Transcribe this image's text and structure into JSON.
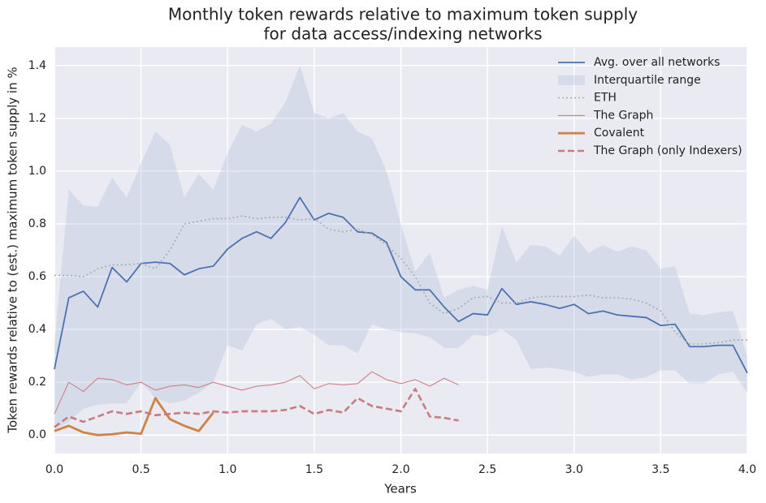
{
  "chart_data": {
    "type": "line",
    "title": "Monthly token rewards relative to maximum token supply",
    "subtitle": "for data access/indexing networks",
    "xlabel": "Years",
    "ylabel": "Token rewards relative to (est.) maximum token supply in %",
    "xlim": [
      0,
      4
    ],
    "ylim": [
      -0.07,
      1.47
    ],
    "xticks": [
      {
        "value": 0,
        "label": "0.0"
      },
      {
        "value": 0.5,
        "label": "0.5"
      },
      {
        "value": 1,
        "label": "1.0"
      },
      {
        "value": 1.5,
        "label": "1.5"
      },
      {
        "value": 2,
        "label": "2.0"
      },
      {
        "value": 2.5,
        "label": "2.5"
      },
      {
        "value": 3,
        "label": "3.0"
      },
      {
        "value": 3.5,
        "label": "3.5"
      },
      {
        "value": 4,
        "label": "4.0"
      }
    ],
    "yticks": [
      {
        "value": 0,
        "label": "0.0"
      },
      {
        "value": 0.2,
        "label": "0.2"
      },
      {
        "value": 0.4,
        "label": "0.4"
      },
      {
        "value": 0.6,
        "label": "0.6"
      },
      {
        "value": 0.8,
        "label": "0.8"
      },
      {
        "value": 1,
        "label": "1.0"
      },
      {
        "value": 1.2,
        "label": "1.2"
      },
      {
        "value": 1.4,
        "label": "1.4"
      }
    ],
    "grid": true,
    "legend_loc": "upper right",
    "x": [
      0,
      0.083,
      0.167,
      0.25,
      0.333,
      0.417,
      0.5,
      0.583,
      0.667,
      0.75,
      0.833,
      0.917,
      1,
      1.083,
      1.167,
      1.25,
      1.333,
      1.417,
      1.5,
      1.583,
      1.667,
      1.75,
      1.833,
      1.917,
      2,
      2.083,
      2.167,
      2.25,
      2.333,
      2.417,
      2.5,
      2.583,
      2.667,
      2.75,
      2.833,
      2.917,
      3,
      3.083,
      3.167,
      3.25,
      3.333,
      3.417,
      3.5,
      3.583,
      3.667,
      3.75,
      3.833,
      3.917,
      4
    ],
    "band": {
      "name": "Interquartile range",
      "color": "#b3bfdc",
      "upper": [
        0.35,
        0.93,
        0.87,
        0.865,
        0.975,
        0.9,
        1.03,
        1.15,
        1.1,
        0.9,
        0.99,
        0.93,
        1.07,
        1.175,
        1.15,
        1.18,
        1.26,
        1.4,
        1.22,
        1.2,
        1.22,
        1.15,
        1.125,
        1.0,
        0.8,
        0.62,
        0.69,
        0.52,
        0.55,
        0.565,
        0.55,
        0.79,
        0.655,
        0.72,
        0.715,
        0.68,
        0.755,
        0.69,
        0.72,
        0.695,
        0.715,
        0.7,
        0.63,
        0.64,
        0.46,
        0.455,
        0.465,
        0.47,
        0.3
      ],
      "lower": [
        0.02,
        0.05,
        0.1,
        0.115,
        0.12,
        0.12,
        0.2,
        0.14,
        0.12,
        0.13,
        0.16,
        0.2,
        0.34,
        0.32,
        0.42,
        0.44,
        0.4,
        0.41,
        0.38,
        0.34,
        0.34,
        0.31,
        0.42,
        0.4,
        0.39,
        0.385,
        0.37,
        0.33,
        0.33,
        0.38,
        0.375,
        0.4,
        0.36,
        0.25,
        0.255,
        0.25,
        0.24,
        0.22,
        0.23,
        0.23,
        0.21,
        0.22,
        0.245,
        0.245,
        0.195,
        0.195,
        0.23,
        0.24,
        0.16
      ]
    },
    "series": [
      {
        "name": "Avg. over all networks",
        "color": "#4c72b0",
        "width": 1.8,
        "dash": "none",
        "values": [
          0.25,
          0.52,
          0.545,
          0.485,
          0.635,
          0.58,
          0.65,
          0.655,
          0.65,
          0.607,
          0.63,
          0.64,
          0.705,
          0.745,
          0.77,
          0.745,
          0.805,
          0.9,
          0.815,
          0.84,
          0.825,
          0.77,
          0.765,
          0.73,
          0.6,
          0.55,
          0.55,
          0.485,
          0.43,
          0.46,
          0.455,
          0.555,
          0.495,
          0.505,
          0.495,
          0.48,
          0.495,
          0.46,
          0.47,
          0.455,
          0.45,
          0.445,
          0.415,
          0.42,
          0.335,
          0.335,
          0.34,
          0.34,
          0.235
        ]
      },
      {
        "name": "ETH",
        "color": "#aaaaaa",
        "width": 1.6,
        "dash": "2 3",
        "values": [
          0.605,
          0.605,
          0.6,
          0.63,
          0.645,
          0.645,
          0.65,
          0.63,
          0.7,
          0.8,
          0.81,
          0.82,
          0.82,
          0.83,
          0.82,
          0.825,
          0.825,
          0.815,
          0.82,
          0.78,
          0.77,
          0.78,
          0.76,
          0.72,
          0.67,
          0.6,
          0.5,
          0.46,
          0.48,
          0.52,
          0.525,
          0.5,
          0.5,
          0.52,
          0.525,
          0.525,
          0.525,
          0.53,
          0.52,
          0.52,
          0.515,
          0.5,
          0.47,
          0.39,
          0.345,
          0.345,
          0.35,
          0.36,
          0.36
        ]
      },
      {
        "name": "The Graph",
        "color": "#cd8185",
        "width": 1.1,
        "dash": "none",
        "values": [
          0.08,
          0.2,
          0.165,
          0.215,
          0.21,
          0.19,
          0.2,
          0.17,
          0.185,
          0.19,
          0.18,
          0.2,
          0.185,
          0.17,
          0.185,
          0.19,
          0.2,
          0.225,
          0.175,
          0.195,
          0.19,
          0.195,
          0.24,
          0.21,
          0.195,
          0.21,
          0.185,
          0.215,
          0.19,
          null,
          null,
          null,
          null,
          null,
          null,
          null,
          null,
          null,
          null,
          null,
          null,
          null,
          null,
          null,
          null,
          null,
          null,
          null,
          null
        ]
      },
      {
        "name": "Covalent",
        "color": "#cc8345",
        "width": 2.8,
        "dash": "none",
        "values": [
          0.015,
          0.035,
          0.01,
          0.0,
          0.003,
          0.01,
          0.005,
          0.14,
          0.06,
          0.035,
          0.015,
          0.085,
          null,
          null,
          null,
          null,
          null,
          null,
          null,
          null,
          null,
          null,
          null,
          null,
          null,
          null,
          null,
          null,
          null,
          null,
          null,
          null,
          null,
          null,
          null,
          null,
          null,
          null,
          null,
          null,
          null,
          null,
          null,
          null,
          null,
          null,
          null,
          null,
          null
        ]
      },
      {
        "name": "The Graph (only Indexers)",
        "color": "#c97b7e",
        "width": 2.6,
        "dash": "8 4",
        "values": [
          0.03,
          0.07,
          0.05,
          0.07,
          0.09,
          0.08,
          0.09,
          0.075,
          0.08,
          0.085,
          0.08,
          0.09,
          0.085,
          0.09,
          0.09,
          0.09,
          0.095,
          0.11,
          0.08,
          0.095,
          0.085,
          0.14,
          0.11,
          0.1,
          0.09,
          0.175,
          0.07,
          0.065,
          0.055,
          null,
          null,
          null,
          null,
          null,
          null,
          null,
          null,
          null,
          null,
          null,
          null,
          null,
          null,
          null,
          null,
          null,
          null,
          null,
          null
        ]
      }
    ]
  }
}
